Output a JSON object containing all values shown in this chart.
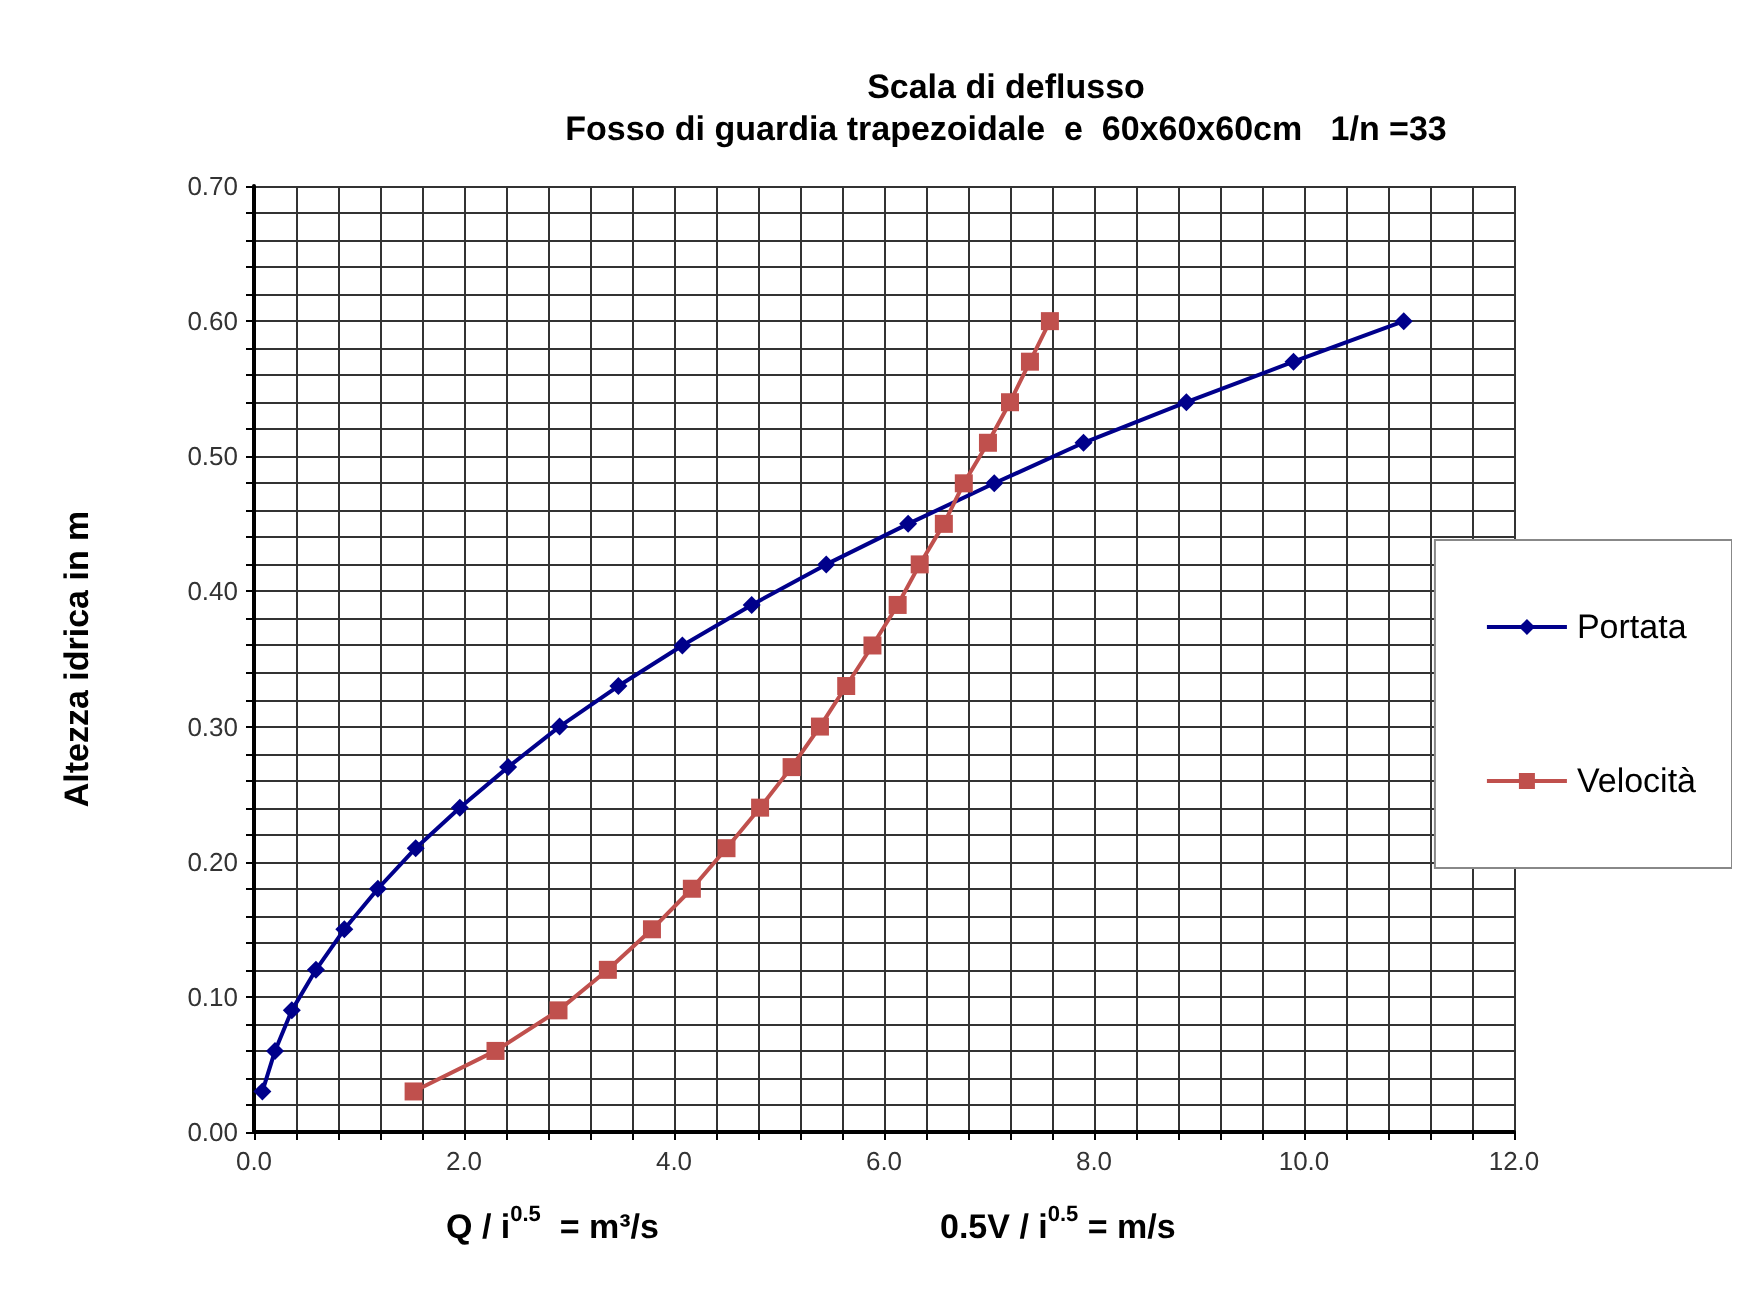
{
  "chart_data": {
    "type": "line",
    "title": "Scala di deflusso",
    "subtitle": "Fosso di guardia trapezoidale  e  60x60x60cm   1/n =33",
    "xlabel": "Q / i$^{0.5}$  = m³/s",
    "ylabel": "Altezza idrica in m",
    "annotations": [
      "0.5V / i$^{0.5}$ = m/s"
    ],
    "series": [
      {
        "name": "Portata",
        "color": "#00008b",
        "marker": "diamond",
        "x": [
          0.08,
          0.2,
          0.36,
          0.59,
          0.86,
          1.18,
          1.54,
          1.96,
          2.42,
          2.91,
          3.47,
          4.08,
          4.74,
          5.45,
          6.23,
          7.05,
          7.9,
          8.88,
          9.9,
          10.95
        ],
        "values": [
          0.03,
          0.06,
          0.09,
          0.12,
          0.15,
          0.18,
          0.21,
          0.24,
          0.27,
          0.3,
          0.33,
          0.36,
          0.39,
          0.42,
          0.45,
          0.48,
          0.51,
          0.54,
          0.57,
          0.6
        ]
      },
      {
        "name": "Velocità",
        "color": "#c0504d",
        "marker": "square",
        "x": [
          1.52,
          2.3,
          2.9,
          3.37,
          3.79,
          4.17,
          4.5,
          4.82,
          5.12,
          5.39,
          5.64,
          5.89,
          6.13,
          6.34,
          6.57,
          6.76,
          6.99,
          7.2,
          7.39,
          7.58
        ],
        "values": [
          0.03,
          0.06,
          0.09,
          0.12,
          0.15,
          0.18,
          0.21,
          0.24,
          0.27,
          0.3,
          0.33,
          0.36,
          0.39,
          0.42,
          0.45,
          0.48,
          0.51,
          0.54,
          0.57,
          0.6
        ]
      }
    ],
    "xlim": [
      0,
      12
    ],
    "xticks": [
      {
        "value": 0,
        "label": "0.0"
      },
      {
        "value": 0.4,
        "label": null
      },
      {
        "value": 0.8,
        "label": null
      },
      {
        "value": 1.2,
        "label": null
      },
      {
        "value": 1.6,
        "label": null
      },
      {
        "value": 2,
        "label": "2.0"
      },
      {
        "value": 2.4,
        "label": null
      },
      {
        "value": 2.8,
        "label": null
      },
      {
        "value": 3.2,
        "label": null
      },
      {
        "value": 3.6,
        "label": null
      },
      {
        "value": 4,
        "label": "4.0"
      },
      {
        "value": 4.4,
        "label": null
      },
      {
        "value": 4.8,
        "label": null
      },
      {
        "value": 5.2,
        "label": null
      },
      {
        "value": 5.6,
        "label": null
      },
      {
        "value": 6,
        "label": "6.0"
      },
      {
        "value": 6.4,
        "label": null
      },
      {
        "value": 6.8,
        "label": null
      },
      {
        "value": 7.2,
        "label": null
      },
      {
        "value": 7.6,
        "label": null
      },
      {
        "value": 8,
        "label": "8.0"
      },
      {
        "value": 8.4,
        "label": null
      },
      {
        "value": 8.8,
        "label": null
      },
      {
        "value": 9.2,
        "label": null
      },
      {
        "value": 9.6,
        "label": null
      },
      {
        "value": 10,
        "label": "10.0"
      },
      {
        "value": 10.4,
        "label": null
      },
      {
        "value": 10.8,
        "label": null
      },
      {
        "value": 11.2,
        "label": null
      },
      {
        "value": 11.6,
        "label": null
      },
      {
        "value": 12,
        "label": "12.0"
      }
    ],
    "ylim": [
      0,
      0.7
    ],
    "yticks": [
      {
        "value": 0,
        "label": "0.00"
      },
      {
        "value": 0.02,
        "label": null
      },
      {
        "value": 0.04,
        "label": null
      },
      {
        "value": 0.06,
        "label": null
      },
      {
        "value": 0.08,
        "label": null
      },
      {
        "value": 0.1,
        "label": "0.10"
      },
      {
        "value": 0.12,
        "label": null
      },
      {
        "value": 0.14,
        "label": null
      },
      {
        "value": 0.16,
        "label": null
      },
      {
        "value": 0.18,
        "label": null
      },
      {
        "value": 0.2,
        "label": "0.20"
      },
      {
        "value": 0.22,
        "label": null
      },
      {
        "value": 0.24,
        "label": null
      },
      {
        "value": 0.26,
        "label": null
      },
      {
        "value": 0.28,
        "label": null
      },
      {
        "value": 0.3,
        "label": "0.30"
      },
      {
        "value": 0.32,
        "label": null
      },
      {
        "value": 0.34,
        "label": null
      },
      {
        "value": 0.36,
        "label": null
      },
      {
        "value": 0.38,
        "label": null
      },
      {
        "value": 0.4,
        "label": "0.40"
      },
      {
        "value": 0.42,
        "label": null
      },
      {
        "value": 0.44,
        "label": null
      },
      {
        "value": 0.46,
        "label": null
      },
      {
        "value": 0.48,
        "label": null
      },
      {
        "value": 0.5,
        "label": "0.50"
      },
      {
        "value": 0.52,
        "label": null
      },
      {
        "value": 0.54,
        "label": null
      },
      {
        "value": 0.56,
        "label": null
      },
      {
        "value": 0.58,
        "label": null
      },
      {
        "value": 0.6,
        "label": "0.60"
      },
      {
        "value": 0.62,
        "label": null
      },
      {
        "value": 0.64,
        "label": null
      },
      {
        "value": 0.66,
        "label": null
      },
      {
        "value": 0.68,
        "label": null
      },
      {
        "value": 0.7,
        "label": "0.70"
      }
    ],
    "grid": true,
    "legend": "right",
    "line_style": "solid"
  }
}
